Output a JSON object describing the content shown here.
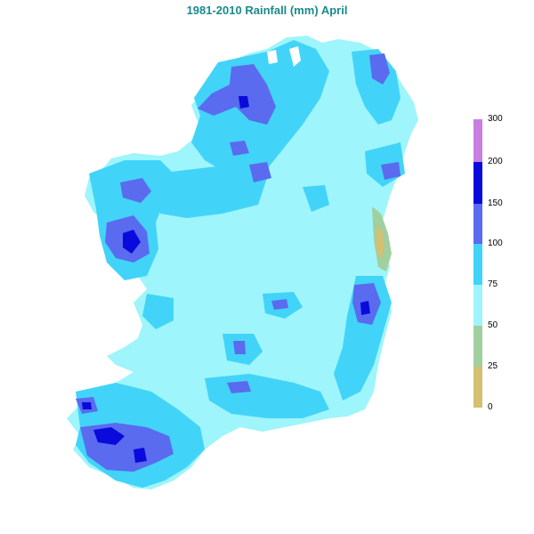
{
  "title": "1981-2010 Rainfall (mm) April",
  "legend": {
    "ticks": [
      "300",
      "200",
      "150",
      "100",
      "75",
      "50",
      "25",
      "0"
    ],
    "bands": [
      {
        "from": 200,
        "to": 300,
        "color": "#c97fe0"
      },
      {
        "from": 150,
        "to": 200,
        "color": "#0a0adc"
      },
      {
        "from": 100,
        "to": 150,
        "color": "#5a6bef"
      },
      {
        "from": 75,
        "to": 100,
        "color": "#42d4f8"
      },
      {
        "from": 50,
        "to": 75,
        "color": "#9ef5fb"
      },
      {
        "from": 25,
        "to": 50,
        "color": "#a2cf9e"
      },
      {
        "from": 0,
        "to": 25,
        "color": "#d4c070"
      }
    ]
  },
  "colors": {
    "background": "#ffffff",
    "title": "#1a8a8a",
    "band_50_75": "#9ef5fb",
    "band_75_100": "#42d4f8",
    "band_100_150": "#5a6bef",
    "band_150_200": "#0a0adc",
    "band_25_50": "#a2cf9e",
    "band_0_25": "#d4c070"
  }
}
